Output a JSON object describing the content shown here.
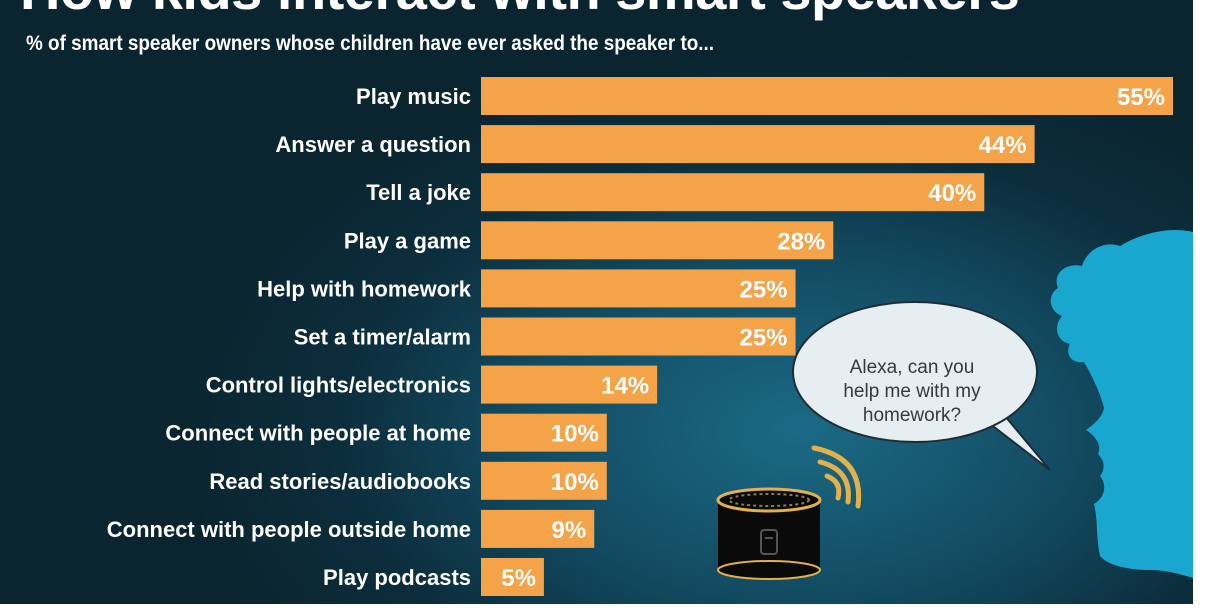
{
  "header": {
    "title": "How kids interact with smart speakers",
    "subtitle": "% of smart speaker owners whose children have ever asked the speaker to..."
  },
  "speech_bubble": {
    "text": "Alexa, can you\nhelp me with my\nhomework?"
  },
  "colors": {
    "bar": "#f4a348",
    "background": "#0f3a4b",
    "label_text": "#ffffff",
    "silhouette": "#1aa7cf",
    "speaker_body": "#0a0a0a",
    "speaker_accent": "#e3b04b"
  },
  "icons": [
    "child-silhouette-icon",
    "smart-speaker-icon",
    "sound-waves-icon"
  ],
  "chart_data": {
    "type": "bar",
    "orientation": "horizontal",
    "title": "How kids interact with smart speakers",
    "subtitle": "% of smart speaker owners whose children have ever asked the speaker to...",
    "categories": [
      "Play music",
      "Answer a question",
      "Tell a joke",
      "Play a game",
      "Help with homework",
      "Set a timer/alarm",
      "Control lights/electronics",
      "Connect with people at home",
      "Read stories/audiobooks",
      "Connect with people outside home",
      "Play podcasts"
    ],
    "values": [
      55,
      44,
      40,
      28,
      25,
      25,
      14,
      10,
      10,
      9,
      5
    ],
    "value_labels": [
      "55%",
      "44%",
      "40%",
      "28%",
      "25%",
      "25%",
      "14%",
      "10%",
      "10%",
      "9%",
      "5%"
    ],
    "unit": "%",
    "xlim": [
      0,
      55
    ],
    "grid": false,
    "legend": "none"
  }
}
